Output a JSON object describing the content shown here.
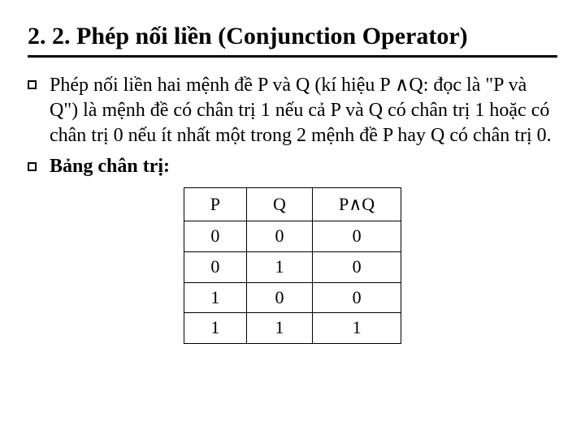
{
  "title": "2. 2. Phép nối liền (Conjunction Operator)",
  "para1_pre": "Phép nối liền hai mệnh đề P và Q (kí hiệu P ",
  "and1": "∧",
  "para1_post": "Q: đọc là \"P và Q\") là mệnh đề có chân trị 1 nếu cả P và Q có chân trị 1 hoặc có chân trị 0 nếu ít nhất một trong 2 mệnh đề P hay Q có chân trị 0.",
  "para2": "Bảng chân trị:",
  "table": {
    "h1": "P",
    "h2": "Q",
    "h3_pre": "P",
    "h3_and": "∧",
    "h3_post": "Q",
    "rows": [
      {
        "p": "0",
        "q": "0",
        "r": "0"
      },
      {
        "p": "0",
        "q": "1",
        "r": "0"
      },
      {
        "p": "1",
        "q": "0",
        "r": "0"
      },
      {
        "p": "1",
        "q": "1",
        "r": "1"
      }
    ]
  }
}
